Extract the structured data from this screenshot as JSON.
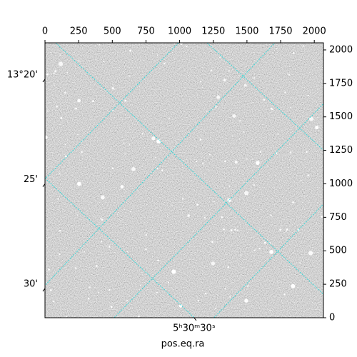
{
  "chart_data": {
    "type": "image",
    "x_axis_label": "pos.eq.ra",
    "xlim": [
      0,
      2068
    ],
    "xticks": [
      0,
      250,
      500,
      750,
      1000,
      1250,
      1500,
      1750,
      2000
    ],
    "ylim": [
      0,
      2053
    ],
    "yticks": [
      0,
      250,
      500,
      750,
      1000,
      1250,
      1500,
      1750,
      2000
    ],
    "dec_lim": [
      13.5233,
      13.3043
    ],
    "dec_ticks": [
      {
        "value": 13.3333,
        "label": "13°20'"
      },
      {
        "value": 13.4167,
        "label": "25'"
      },
      {
        "value": 13.5,
        "label": "30'"
      }
    ],
    "ra_lim": [
      82.7475,
      82.5188
    ],
    "ra_ticks": [
      {
        "value": 82.625,
        "label": "5ʰ30ᵐ30ˢ"
      }
    ],
    "grid": true,
    "grid_color": "#1fd8d8"
  }
}
